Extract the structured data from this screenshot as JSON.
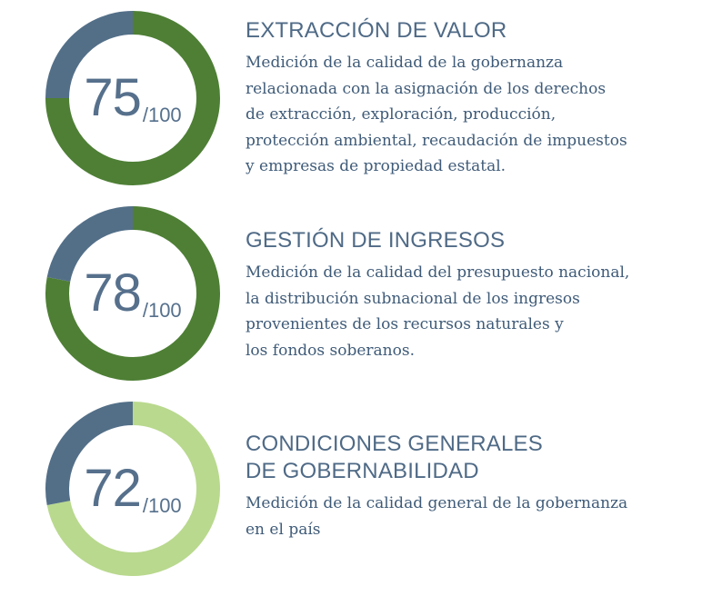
{
  "chart_data": [
    {
      "type": "pie",
      "title": "EXTRACCIÓN DE VALOR",
      "description": "Medición de la calidad de la gobernanza\nrelacionada con la asignación de los derechos\nde extracción, exploración, producción,\nprotección ambiental, recaudación de impuestos\ny empresas de propiedad estatal.",
      "value": 75,
      "value_label": "75",
      "max_label": "/100",
      "max": 100,
      "colors": {
        "score": "#4e7f35",
        "remainder": "#536f88"
      }
    },
    {
      "type": "pie",
      "title": "GESTIÓN DE INGRESOS",
      "description": "Medición de la calidad del presupuesto nacional,\nla distribución subnacional de los ingresos\nprovenientes de los recursos naturales y\nlos fondos soberanos.",
      "value": 78,
      "value_label": "78",
      "max_label": "/100",
      "max": 100,
      "colors": {
        "score": "#4e7f35",
        "remainder": "#536f88"
      }
    },
    {
      "type": "pie",
      "title": "CONDICIONES GENERALES\nDE GOBERNABILIDAD",
      "description": "Medición de la calidad general de la gobernanza\nen el país",
      "value": 72,
      "value_label": "72",
      "max_label": "/100",
      "max": 100,
      "colors": {
        "score": "#b9d98e",
        "remainder": "#536f88"
      }
    }
  ]
}
